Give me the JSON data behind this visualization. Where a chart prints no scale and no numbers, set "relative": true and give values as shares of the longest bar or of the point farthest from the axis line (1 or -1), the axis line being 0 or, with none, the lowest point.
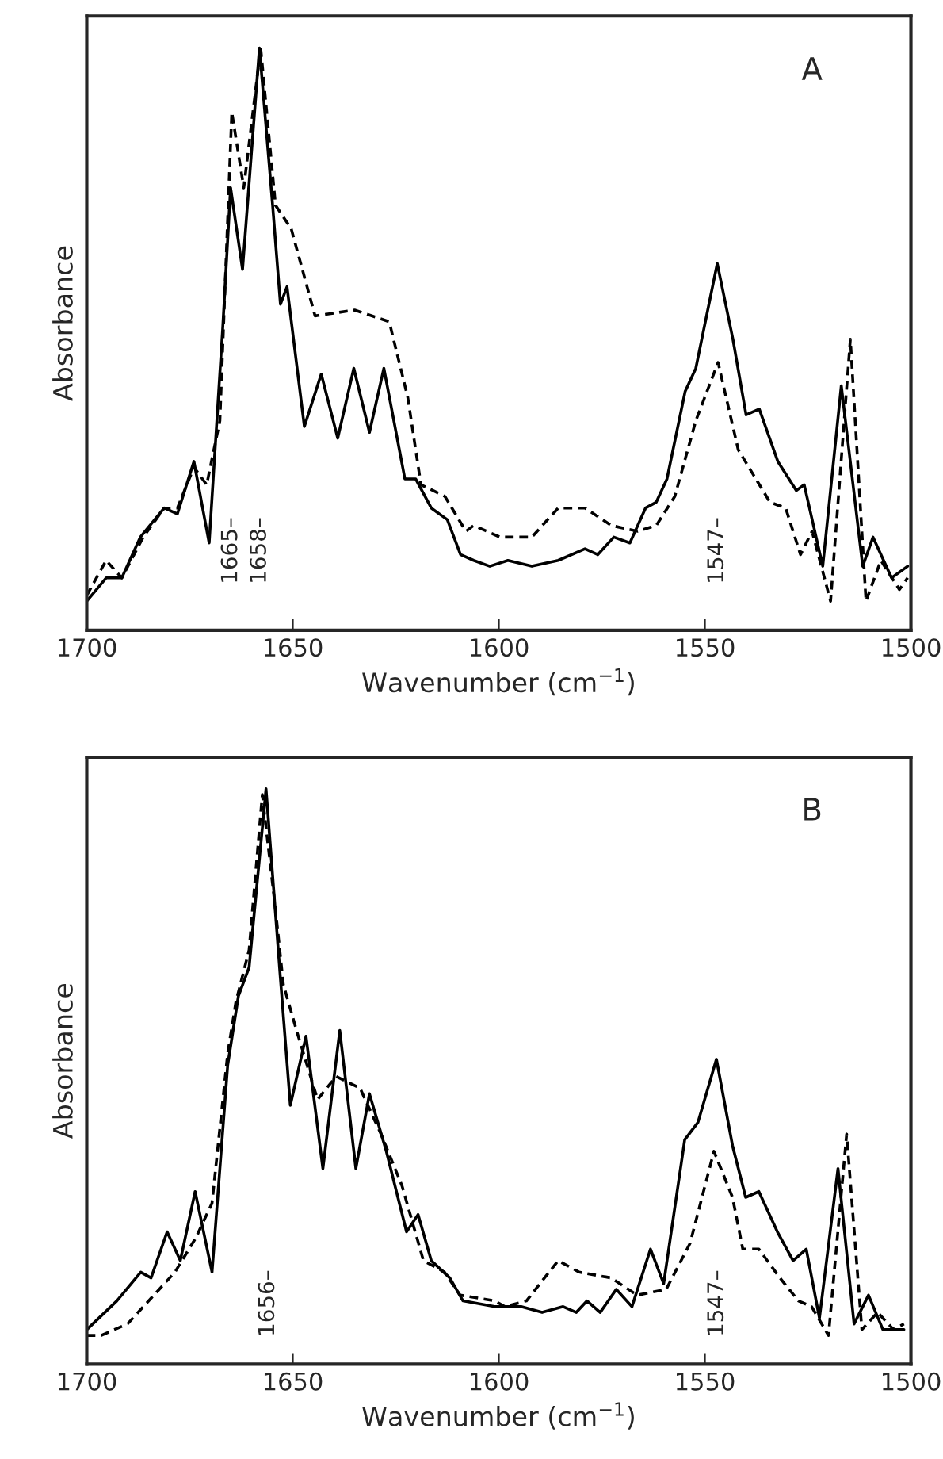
{
  "chart_data": [
    {
      "type": "line",
      "xlabel": "Wavenumber (cm$^{−1}$)",
      "ylabel": "Absorbance",
      "relative": true,
      "tick_labels": "x",
      "xlim": [
        1700,
        1500
      ],
      "xticks": [
        1700,
        1650,
        1600,
        1550,
        1500
      ],
      "annotations": [
        "A",
        "1665–",
        "1658–",
        "1547–"
      ],
      "series": [
        {
          "color": "#000000",
          "line_style": "solid",
          "x": [
            1700,
            1695.3,
            1691.5,
            1687,
            1681.2,
            1678,
            1674,
            1670.3,
            1667,
            1665.1,
            1662.2,
            1658.1,
            1654.9,
            1653,
            1651.4,
            1647.2,
            1643.1,
            1639.1,
            1635.2,
            1631.4,
            1627.9,
            1622.8,
            1620.2,
            1616.4,
            1612.5,
            1609.3,
            1606.1,
            1602.2,
            1597.8,
            1592,
            1585.6,
            1579.1,
            1576,
            1572.1,
            1568.2,
            1564.4,
            1561.8,
            1559.2,
            1554.8,
            1552.2,
            1547,
            1543.2,
            1540,
            1536.8,
            1532.3,
            1527.8,
            1525.9,
            1521.4,
            1516.9,
            1511.7,
            1509.2,
            1504.7,
            1500.8
          ],
          "values": [
            0.05,
            0.09,
            0.09,
            0.16,
            0.21,
            0.2,
            0.29,
            0.15,
            0.52,
            0.76,
            0.62,
            1.0,
            0.73,
            0.56,
            0.59,
            0.35,
            0.44,
            0.33,
            0.45,
            0.34,
            0.45,
            0.26,
            0.26,
            0.21,
            0.19,
            0.13,
            0.12,
            0.11,
            0.12,
            0.11,
            0.12,
            0.14,
            0.13,
            0.16,
            0.15,
            0.21,
            0.22,
            0.26,
            0.41,
            0.45,
            0.63,
            0.5,
            0.37,
            0.38,
            0.29,
            0.24,
            0.25,
            0.11,
            0.42,
            0.11,
            0.16,
            0.09,
            0.11
          ]
        },
        {
          "color": "#000000",
          "line_style": "dashed",
          "x": [
            1700,
            1695.3,
            1691.5,
            1686.3,
            1681.2,
            1678,
            1674,
            1670.9,
            1667.7,
            1664.8,
            1661.9,
            1657.8,
            1654.2,
            1650.4,
            1644.6,
            1635,
            1626.6,
            1622.1,
            1618.9,
            1613.1,
            1608,
            1606.1,
            1599.7,
            1592,
            1585.6,
            1579.1,
            1572.7,
            1566.3,
            1561.8,
            1557.3,
            1552.2,
            1546.8,
            1541.9,
            1534.2,
            1530.4,
            1526.8,
            1524,
            1519.5,
            1514.7,
            1510.9,
            1507.3,
            1502.8,
            1500.8
          ],
          "values": [
            0.06,
            0.12,
            0.09,
            0.16,
            0.21,
            0.21,
            0.28,
            0.25,
            0.36,
            0.89,
            0.76,
            1.0,
            0.73,
            0.69,
            0.54,
            0.55,
            0.53,
            0.4,
            0.25,
            0.23,
            0.17,
            0.18,
            0.16,
            0.16,
            0.21,
            0.21,
            0.18,
            0.17,
            0.18,
            0.23,
            0.36,
            0.46,
            0.31,
            0.22,
            0.21,
            0.13,
            0.17,
            0.05,
            0.5,
            0.05,
            0.12,
            0.07,
            0.09
          ]
        }
      ]
    },
    {
      "type": "line",
      "xlabel": "Wavenumber (cm$^{−1}$)",
      "ylabel": "Absorbance",
      "relative": true,
      "tick_labels": "x",
      "xlim": [
        1700,
        1500
      ],
      "xticks": [
        1700,
        1650,
        1600,
        1550,
        1500
      ],
      "annotations": [
        "B",
        "1656–",
        "1547–"
      ],
      "series": [
        {
          "color": "#000000",
          "line_style": "solid",
          "x": [
            1700,
            1692.7,
            1686.9,
            1684.4,
            1680.5,
            1677.3,
            1673.7,
            1669.6,
            1665.8,
            1663.2,
            1660.6,
            1656.5,
            1653,
            1650.6,
            1646.8,
            1642.7,
            1638.6,
            1634.7,
            1631.4,
            1627.3,
            1622.4,
            1619.6,
            1616.4,
            1611.9,
            1608.7,
            1601,
            1598.5,
            1594.6,
            1589.5,
            1584.4,
            1581.2,
            1578.6,
            1575.4,
            1571.5,
            1567.7,
            1563.2,
            1560,
            1554.9,
            1551.7,
            1547.2,
            1543.3,
            1540.1,
            1536.9,
            1532.4,
            1528.6,
            1525.4,
            1522.2,
            1517.7,
            1513.8,
            1510.3,
            1506.8,
            1501.7
          ],
          "values": [
            0.06,
            0.11,
            0.16,
            0.15,
            0.23,
            0.18,
            0.3,
            0.16,
            0.52,
            0.64,
            0.69,
            1.0,
            0.67,
            0.45,
            0.57,
            0.34,
            0.58,
            0.34,
            0.47,
            0.37,
            0.23,
            0.26,
            0.18,
            0.15,
            0.11,
            0.1,
            0.1,
            0.1,
            0.09,
            0.1,
            0.09,
            0.11,
            0.09,
            0.13,
            0.1,
            0.2,
            0.14,
            0.39,
            0.42,
            0.53,
            0.38,
            0.29,
            0.3,
            0.23,
            0.18,
            0.2,
            0.08,
            0.34,
            0.07,
            0.12,
            0.06,
            0.06
          ]
        },
        {
          "color": "#000000",
          "line_style": "dashed",
          "x": [
            1700,
            1696.5,
            1690.1,
            1683.7,
            1678.6,
            1673.5,
            1669.6,
            1665.8,
            1663.8,
            1660.6,
            1657.4,
            1654.2,
            1652.3,
            1649.1,
            1644,
            1639.5,
            1633.7,
            1628.6,
            1623.5,
            1618.3,
            1613.2,
            1609.4,
            1601,
            1598.5,
            1593.3,
            1585.6,
            1580.5,
            1572.8,
            1566.4,
            1559.4,
            1553.6,
            1547.8,
            1543.3,
            1540.8,
            1536.9,
            1531.8,
            1527.3,
            1524.1,
            1520,
            1515.6,
            1511.9,
            1508.1,
            1504.2,
            1501.7
          ],
          "values": [
            0.05,
            0.05,
            0.07,
            0.12,
            0.16,
            0.22,
            0.28,
            0.54,
            0.63,
            0.72,
            0.99,
            0.79,
            0.66,
            0.58,
            0.46,
            0.5,
            0.48,
            0.4,
            0.31,
            0.18,
            0.16,
            0.12,
            0.11,
            0.1,
            0.11,
            0.18,
            0.16,
            0.15,
            0.12,
            0.13,
            0.21,
            0.37,
            0.29,
            0.2,
            0.2,
            0.15,
            0.11,
            0.1,
            0.05,
            0.4,
            0.06,
            0.09,
            0.06,
            0.07
          ]
        }
      ]
    }
  ]
}
